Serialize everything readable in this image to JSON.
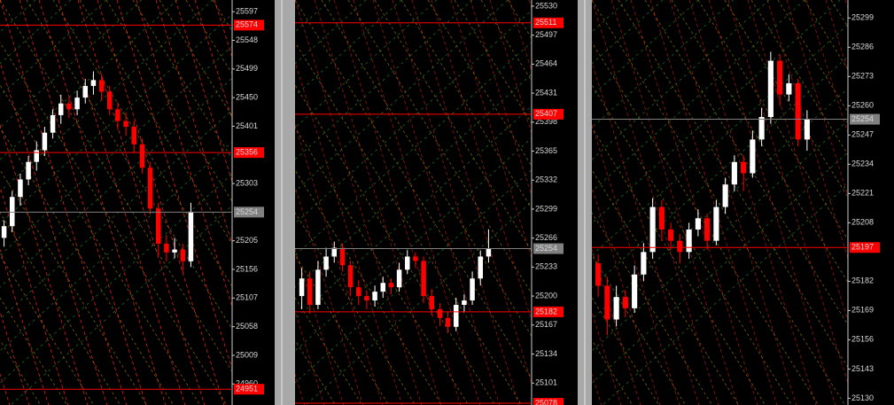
{
  "chart_data": [
    {
      "type": "candlestick",
      "up_color": "#ffffff",
      "down_color": "#ff0000",
      "level_color": "#ff0000",
      "last_color": "#808080",
      "ylim": [
        24924,
        25617
      ],
      "yticks": [
        25597,
        25548,
        25499,
        25450,
        25401,
        25303,
        25205,
        25156,
        25107,
        25058,
        25009,
        24960
      ],
      "levels": [
        25574,
        25356,
        24951
      ],
      "last": 25254,
      "candles": [
        [
          25210,
          25240,
          25195,
          25230
        ],
        [
          25230,
          25290,
          25220,
          25280
        ],
        [
          25280,
          25320,
          25265,
          25310
        ],
        [
          25310,
          25350,
          25300,
          25340
        ],
        [
          25340,
          25375,
          25325,
          25360
        ],
        [
          25360,
          25400,
          25350,
          25390
        ],
        [
          25390,
          25430,
          25380,
          25420
        ],
        [
          25420,
          25455,
          25405,
          25440
        ],
        [
          25440,
          25452,
          25415,
          25430
        ],
        [
          25430,
          25462,
          25420,
          25450
        ],
        [
          25450,
          25482,
          25440,
          25470
        ],
        [
          25470,
          25495,
          25455,
          25480
        ],
        [
          25480,
          25490,
          25445,
          25460
        ],
        [
          25460,
          25470,
          25420,
          25430
        ],
        [
          25430,
          25442,
          25395,
          25410
        ],
        [
          25410,
          25425,
          25385,
          25400
        ],
        [
          25400,
          25410,
          25355,
          25370
        ],
        [
          25370,
          25380,
          25320,
          25330
        ],
        [
          25330,
          25340,
          25250,
          25260
        ],
        [
          25260,
          25270,
          25180,
          25200
        ],
        [
          25200,
          25215,
          25170,
          25185
        ],
        [
          25185,
          25210,
          25175,
          25190
        ],
        [
          25190,
          25200,
          25150,
          25170
        ],
        [
          25170,
          25270,
          25160,
          25254
        ]
      ]
    },
    {
      "type": "candlestick",
      "up_color": "#ffffff",
      "down_color": "#ff0000",
      "level_color": "#ff0000",
      "last_color": "#808080",
      "ylim": [
        25076,
        25537
      ],
      "yticks": [
        25530,
        25497,
        25464,
        25431,
        25398,
        25365,
        25332,
        25299,
        25266,
        25233,
        25200,
        25167,
        25134,
        25101
      ],
      "levels": [
        25511,
        25407,
        25182,
        25078
      ],
      "last": 25254,
      "candles": [
        [
          25200,
          25232,
          25185,
          25220
        ],
        [
          25220,
          25228,
          25180,
          25190
        ],
        [
          25190,
          25240,
          25185,
          25230
        ],
        [
          25230,
          25255,
          25222,
          25245
        ],
        [
          25245,
          25262,
          25238,
          25255
        ],
        [
          25255,
          25260,
          25228,
          25235
        ],
        [
          25235,
          25240,
          25200,
          25210
        ],
        [
          25210,
          25218,
          25190,
          25200
        ],
        [
          25200,
          25206,
          25185,
          25195
        ],
        [
          25195,
          25212,
          25188,
          25205
        ],
        [
          25205,
          25222,
          25198,
          25215
        ],
        [
          25215,
          25220,
          25202,
          25210
        ],
        [
          25210,
          25238,
          25205,
          25230
        ],
        [
          25230,
          25252,
          25225,
          25245
        ],
        [
          25245,
          25250,
          25232,
          25240
        ],
        [
          25240,
          25245,
          25192,
          25200
        ],
        [
          25200,
          25208,
          25178,
          25185
        ],
        [
          25185,
          25192,
          25166,
          25175
        ],
        [
          25175,
          25182,
          25158,
          25165
        ],
        [
          25165,
          25198,
          25160,
          25190
        ],
        [
          25190,
          25202,
          25182,
          25195
        ],
        [
          25195,
          25228,
          25190,
          25220
        ],
        [
          25220,
          25252,
          25212,
          25245
        ],
        [
          25245,
          25276,
          25238,
          25254
        ]
      ]
    },
    {
      "type": "candlestick",
      "up_color": "#ffffff",
      "down_color": "#ff0000",
      "level_color": "#ff0000",
      "last_color": "#808080",
      "ylim": [
        25127,
        25307
      ],
      "yticks": [
        25299,
        25286,
        25273,
        25260,
        25247,
        25234,
        25221,
        25208,
        25182,
        25169,
        25156,
        25143,
        25130
      ],
      "levels": [
        25197
      ],
      "last": 25254,
      "candles": [
        [
          25190,
          25194,
          25175,
          25180
        ],
        [
          25180,
          25184,
          25158,
          25165
        ],
        [
          25165,
          25180,
          25162,
          25175
        ],
        [
          25175,
          25178,
          25166,
          25170
        ],
        [
          25170,
          25189,
          25168,
          25185
        ],
        [
          25185,
          25199,
          25182,
          25195
        ],
        [
          25195,
          25219,
          25192,
          25215
        ],
        [
          25215,
          25218,
          25200,
          25205
        ],
        [
          25205,
          25208,
          25196,
          25200
        ],
        [
          25200,
          25203,
          25190,
          25195
        ],
        [
          25195,
          25208,
          25192,
          25205
        ],
        [
          25205,
          25214,
          25202,
          25210
        ],
        [
          25210,
          25212,
          25196,
          25200
        ],
        [
          25200,
          25218,
          25198,
          25215
        ],
        [
          25215,
          25228,
          25212,
          25225
        ],
        [
          25225,
          25238,
          25222,
          25235
        ],
        [
          25235,
          25238,
          25222,
          25230
        ],
        [
          25230,
          25249,
          25228,
          25245
        ],
        [
          25245,
          25259,
          25242,
          25255
        ],
        [
          25255,
          25284,
          25252,
          25280
        ],
        [
          25280,
          25283,
          25260,
          25265
        ],
        [
          25265,
          25274,
          25262,
          25270
        ],
        [
          25270,
          25272,
          25242,
          25245
        ],
        [
          25245,
          25258,
          25240,
          25254
        ]
      ]
    }
  ]
}
